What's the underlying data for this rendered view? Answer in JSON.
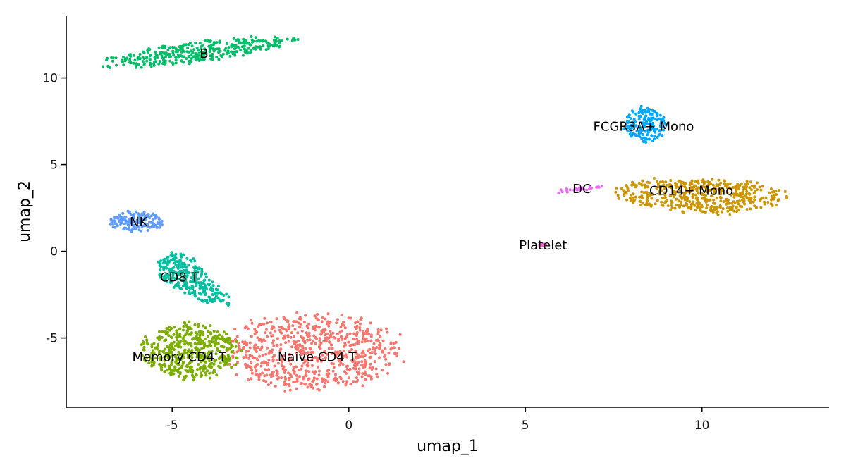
{
  "chart_data": {
    "type": "scatter",
    "title": "",
    "xlabel": "umap_1",
    "ylabel": "umap_2",
    "xlim": [
      -8.0,
      13.6
    ],
    "ylim": [
      -9.0,
      13.6
    ],
    "x_ticks": [
      -5,
      0,
      5,
      10
    ],
    "y_ticks": [
      -5,
      0,
      5,
      10
    ],
    "x_tick_labels": [
      "-5",
      "0",
      "5",
      "10"
    ],
    "y_tick_labels": [
      "-5",
      "0",
      "5",
      "10"
    ],
    "grid": false,
    "legend": "none",
    "clusters": [
      {
        "name": "Naive CD4 T",
        "color": "#F8766D",
        "label_pos": [
          -0.9,
          -6.1
        ],
        "n": 700,
        "region": {
          "type": "ellipse",
          "cx": -1.0,
          "cy": -5.8,
          "rx": 2.5,
          "ry": 2.2
        }
      },
      {
        "name": "Memory CD4 T",
        "color": "#7CAE00",
        "label_pos": [
          -4.8,
          -6.1
        ],
        "n": 480,
        "region": {
          "type": "ellipse",
          "cx": -4.5,
          "cy": -5.8,
          "rx": 1.4,
          "ry": 1.6
        }
      },
      {
        "name": "CD14+ Mono",
        "color": "#CD9600",
        "label_pos": [
          9.7,
          3.5
        ],
        "n": 480,
        "region": {
          "type": "ellipse",
          "cx": 10.0,
          "cy": 3.2,
          "rx": 2.4,
          "ry": 1.0
        }
      },
      {
        "name": "B",
        "color": "#00BE67",
        "label_pos": [
          -4.1,
          11.4
        ],
        "n": 350,
        "region": {
          "type": "ellipse",
          "cx": -4.3,
          "cy": 11.5,
          "rx": 2.7,
          "ry": 0.6
        }
      },
      {
        "name": "CD8 T",
        "color": "#00BFA0",
        "label_pos": [
          -4.8,
          -1.5
        ],
        "n": 280,
        "region": {
          "type": "ellipse",
          "cx": -4.6,
          "cy": -1.6,
          "rx": 0.7,
          "ry": 1.5
        }
      },
      {
        "name": "FCGR3A+ Mono",
        "color": "#00A9FF",
        "label_pos": [
          8.35,
          7.2
        ],
        "n": 160,
        "region": {
          "type": "ellipse",
          "cx": 8.4,
          "cy": 7.3,
          "rx": 0.6,
          "ry": 1.0
        }
      },
      {
        "name": "NK",
        "color": "#619CFF",
        "label_pos": [
          -5.95,
          1.7
        ],
        "n": 160,
        "region": {
          "type": "ellipse",
          "cx": -6.0,
          "cy": 1.7,
          "rx": 0.75,
          "ry": 0.6
        }
      },
      {
        "name": "DC",
        "color": "#E76BF3",
        "label_pos": [
          6.6,
          3.6
        ],
        "n": 30,
        "region": {
          "type": "line",
          "x0": 6.0,
          "y0": 3.45,
          "x1": 7.1,
          "y1": 3.75
        }
      },
      {
        "name": "Platelet",
        "color": "#FF61CC",
        "label_pos": [
          5.5,
          0.35
        ],
        "n": 10,
        "region": {
          "type": "ellipse",
          "cx": 5.5,
          "cy": 0.4,
          "rx": 0.12,
          "ry": 0.1
        }
      }
    ]
  }
}
